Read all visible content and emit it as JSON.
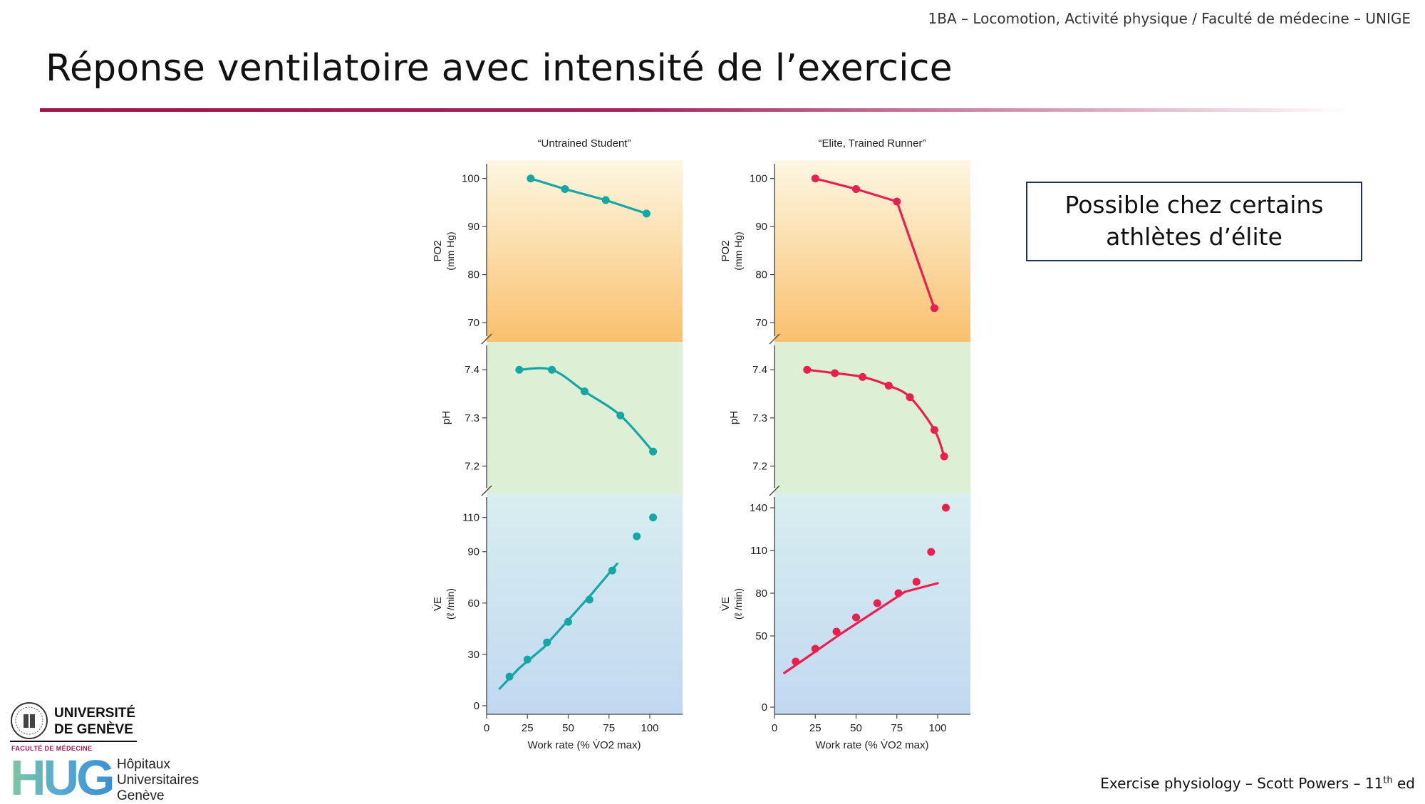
{
  "header": {
    "course": "1BA – Locomotion, Activité physique / Faculté de médecine – UNIGE",
    "title": "Réponse ventilatoire avec intensité de l’exercice"
  },
  "callout": {
    "line1": "Possible chez certains",
    "line2": "athlètes d’élite"
  },
  "source": {
    "text": "Exercise physiology – Scott Powers – 11",
    "sup": "th",
    "suffix": " ed"
  },
  "logos": {
    "unige_line1": "UNIVERSITÉ",
    "unige_line2": "DE GENÈVE",
    "unige_faculty": "FACULTÉ DE MÉDECINE",
    "hug_letters": "HUG",
    "hug_line1": "Hôpitaux",
    "hug_line2": "Universitaires",
    "hug_line3": "Genève"
  },
  "colors": {
    "untrained": "#15a6a6",
    "elite": "#e8204f",
    "po2_band_top": "#fdf7e2",
    "po2_band_bottom": "#f9c06e",
    "ph_band": "#ddefd4",
    "ve_band_top": "#d8eef0",
    "ve_band_bottom": "#c2d8f1",
    "title_rule": "#9b1546"
  },
  "chart_data": [
    {
      "type": "line",
      "title": "“Untrained Student”",
      "panels": [
        {
          "id": "po2",
          "ylabel": "PO2",
          "yunit": "(mm Hg)",
          "yticks": [
            100,
            90,
            80,
            70
          ],
          "ylim": [
            66,
            103.8
          ],
          "series": [
            {
              "x": [
                27,
                48,
                73,
                98
              ],
              "y": [
                100,
                97.8,
                95.5,
                92.7
              ],
              "style": "line-markers"
            }
          ]
        },
        {
          "id": "ph",
          "ylabel": "pH",
          "yticks": [
            7.4,
            7.3,
            7.2
          ],
          "ylim": [
            7.143,
            7.458
          ],
          "series": [
            {
              "x": [
                20,
                40,
                60,
                82,
                102
              ],
              "y": [
                7.4,
                7.4,
                7.355,
                7.305,
                7.23
              ],
              "style": "curve-markers"
            }
          ]
        },
        {
          "id": "ve",
          "ylabel": "V̇E",
          "yunit": "(ℓ /min)",
          "yticks": [
            110,
            90,
            60,
            30,
            0
          ],
          "ylim": [
            -5,
            124
          ],
          "series": [
            {
              "x": [
                14,
                25,
                37,
                50,
                63,
                77
              ],
              "y": [
                17,
                27,
                37,
                49,
                62,
                79
              ],
              "style": "markers"
            },
            {
              "x": [
                8,
                20,
                35,
                50,
                65,
                80
              ],
              "y": [
                10,
                22,
                34,
                50,
                66,
                83
              ],
              "style": "fit-line"
            },
            {
              "x": [
                92,
                102
              ],
              "y": [
                99,
                110
              ],
              "style": "markers"
            }
          ]
        }
      ],
      "xlabel": "Work rate (% V̇O2 max)",
      "xticks": [
        0,
        25,
        50,
        75,
        100
      ],
      "xlim": [
        0,
        120
      ]
    },
    {
      "type": "line",
      "title": "“Elite, Trained Runner”",
      "panels": [
        {
          "id": "po2",
          "ylabel": "PO2",
          "yunit": "(mm Hg)",
          "yticks": [
            100,
            90,
            80,
            70
          ],
          "ylim": [
            66,
            103.8
          ],
          "series": [
            {
              "x": [
                25,
                50,
                75,
                98
              ],
              "y": [
                100,
                97.8,
                95.2,
                73
              ],
              "style": "line-markers"
            }
          ]
        },
        {
          "id": "ph",
          "ylabel": "pH",
          "yticks": [
            7.4,
            7.3,
            7.2
          ],
          "ylim": [
            7.143,
            7.458
          ],
          "series": [
            {
              "x": [
                20,
                37,
                54,
                70,
                83,
                98,
                104
              ],
              "y": [
                7.4,
                7.393,
                7.385,
                7.367,
                7.343,
                7.275,
                7.22
              ],
              "style": "curve-markers"
            }
          ]
        },
        {
          "id": "ve",
          "ylabel": "V̇E",
          "yunit": "(ℓ /min)",
          "yticks": [
            140,
            110,
            80,
            50,
            0
          ],
          "ylim": [
            -5,
            150
          ],
          "series": [
            {
              "x": [
                13,
                25,
                38,
                50,
                63,
                76
              ],
              "y": [
                32,
                41,
                53,
                63,
                73,
                80
              ],
              "style": "markers"
            },
            {
              "x": [
                6,
                20,
                40,
                60,
                80,
                100
              ],
              "y": [
                24,
                35,
                51,
                66,
                81,
                87
              ],
              "style": "fit-line"
            },
            {
              "x": [
                87,
                96,
                105
              ],
              "y": [
                88,
                109,
                140
              ],
              "style": "markers"
            }
          ]
        }
      ],
      "xlabel": "Work rate (% V̇O2 max)",
      "xticks": [
        0,
        25,
        50,
        75,
        100
      ],
      "xlim": [
        0,
        120
      ]
    }
  ]
}
